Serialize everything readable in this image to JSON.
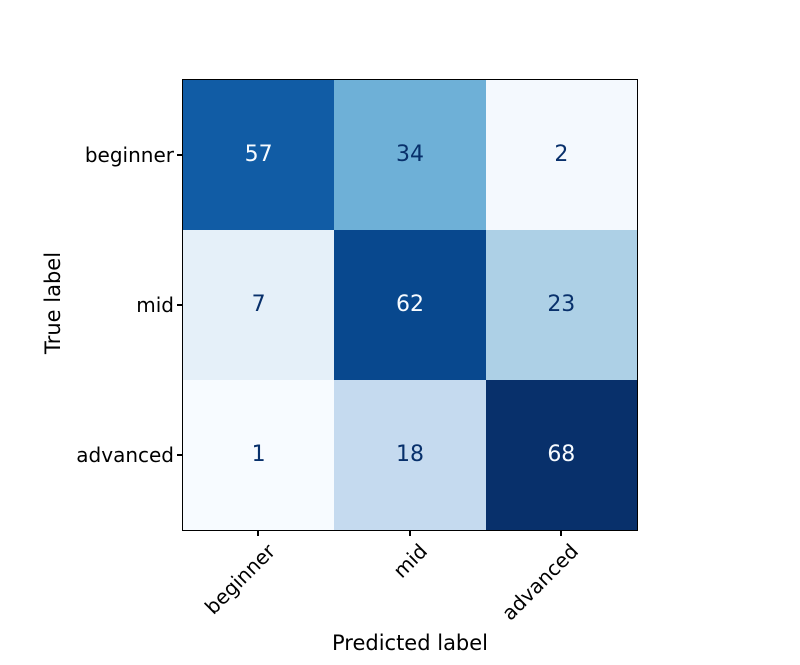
{
  "chart_data": {
    "type": "heatmap",
    "subtype": "confusion-matrix",
    "title": "",
    "xlabel": "Predicted label",
    "ylabel": "True label",
    "categories": [
      "beginner",
      "mid",
      "advanced"
    ],
    "matrix": [
      [
        57,
        34,
        2
      ],
      [
        7,
        62,
        23
      ],
      [
        1,
        18,
        68
      ]
    ],
    "colormap": "Blues",
    "value_range": [
      1,
      68
    ],
    "grid": false,
    "legend": "none",
    "cells": [
      {
        "row": "beginner",
        "col": "beginner",
        "value": "57",
        "color": "#115ca5",
        "text_color": "#f7fbff"
      },
      {
        "row": "beginner",
        "col": "mid",
        "value": "34",
        "color": "#6eb0d7",
        "text_color": "#08306b"
      },
      {
        "row": "beginner",
        "col": "advanced",
        "value": "2",
        "color": "#f4f9fe",
        "text_color": "#08306b"
      },
      {
        "row": "mid",
        "col": "beginner",
        "value": "7",
        "color": "#e5f0f9",
        "text_color": "#08306b"
      },
      {
        "row": "mid",
        "col": "mid",
        "value": "62",
        "color": "#08488e",
        "text_color": "#f7fbff"
      },
      {
        "row": "mid",
        "col": "advanced",
        "value": "23",
        "color": "#add0e6",
        "text_color": "#08306b"
      },
      {
        "row": "advanced",
        "col": "beginner",
        "value": "1",
        "color": "#f7fbff",
        "text_color": "#08306b"
      },
      {
        "row": "advanced",
        "col": "mid",
        "value": "18",
        "color": "#c5daef",
        "text_color": "#08306b"
      },
      {
        "row": "advanced",
        "col": "advanced",
        "value": "68",
        "color": "#08306b",
        "text_color": "#f7fbff"
      }
    ]
  }
}
